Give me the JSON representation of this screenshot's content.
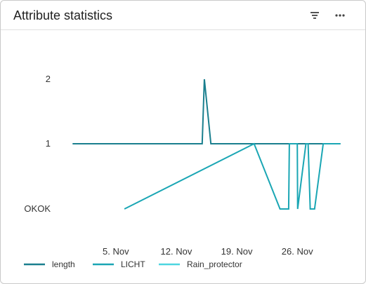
{
  "widget": {
    "title": "Attribute statistics",
    "filter_icon": "filter-icon",
    "more_icon": "more-horizontal-icon"
  },
  "chart_data": {
    "type": "line",
    "title": "",
    "xlabel": "",
    "ylabel": "",
    "x_axis": {
      "type": "date",
      "range": [
        "2023-10-30",
        "2023-12-02"
      ],
      "ticks": [
        {
          "date": "2023-11-05",
          "label": "5. Nov"
        },
        {
          "date": "2023-11-12",
          "label": "12. Nov"
        },
        {
          "date": "2023-11-19",
          "label": "19. Nov"
        },
        {
          "date": "2023-11-26",
          "label": "26. Nov"
        }
      ]
    },
    "y_axis": {
      "type": "category",
      "categories": [
        "OKOK",
        "1",
        "2"
      ]
    },
    "grid": false,
    "legend_position": "bottom-left",
    "series": [
      {
        "name": "length",
        "color": "#1a7f8e",
        "points": [
          [
            "2023-10-31",
            "1"
          ],
          [
            "2023-11-15",
            "1"
          ],
          [
            "2023-11-15T06:00",
            "2"
          ],
          [
            "2023-11-16",
            "1"
          ],
          [
            "2023-12-01",
            "1"
          ]
        ]
      },
      {
        "name": "LICHT",
        "color": "#1aa6b4",
        "points": [
          [
            "2023-11-06",
            "OKOK"
          ],
          [
            "2023-11-21",
            "1"
          ],
          [
            "2023-11-24",
            "OKOK"
          ],
          [
            "2023-11-25",
            "OKOK"
          ],
          [
            "2023-11-25T02:00",
            "1"
          ],
          [
            "2023-11-26",
            "1"
          ],
          [
            "2023-11-26T01:00",
            "OKOK"
          ],
          [
            "2023-11-27",
            "1"
          ],
          [
            "2023-11-27T06:00",
            "1"
          ],
          [
            "2023-11-27T12:00",
            "OKOK"
          ],
          [
            "2023-11-28",
            "OKOK"
          ],
          [
            "2023-11-29",
            "1"
          ],
          [
            "2023-12-01",
            "1"
          ]
        ]
      },
      {
        "name": "Rain_protector",
        "color": "#4dd6e0",
        "points": []
      }
    ]
  }
}
